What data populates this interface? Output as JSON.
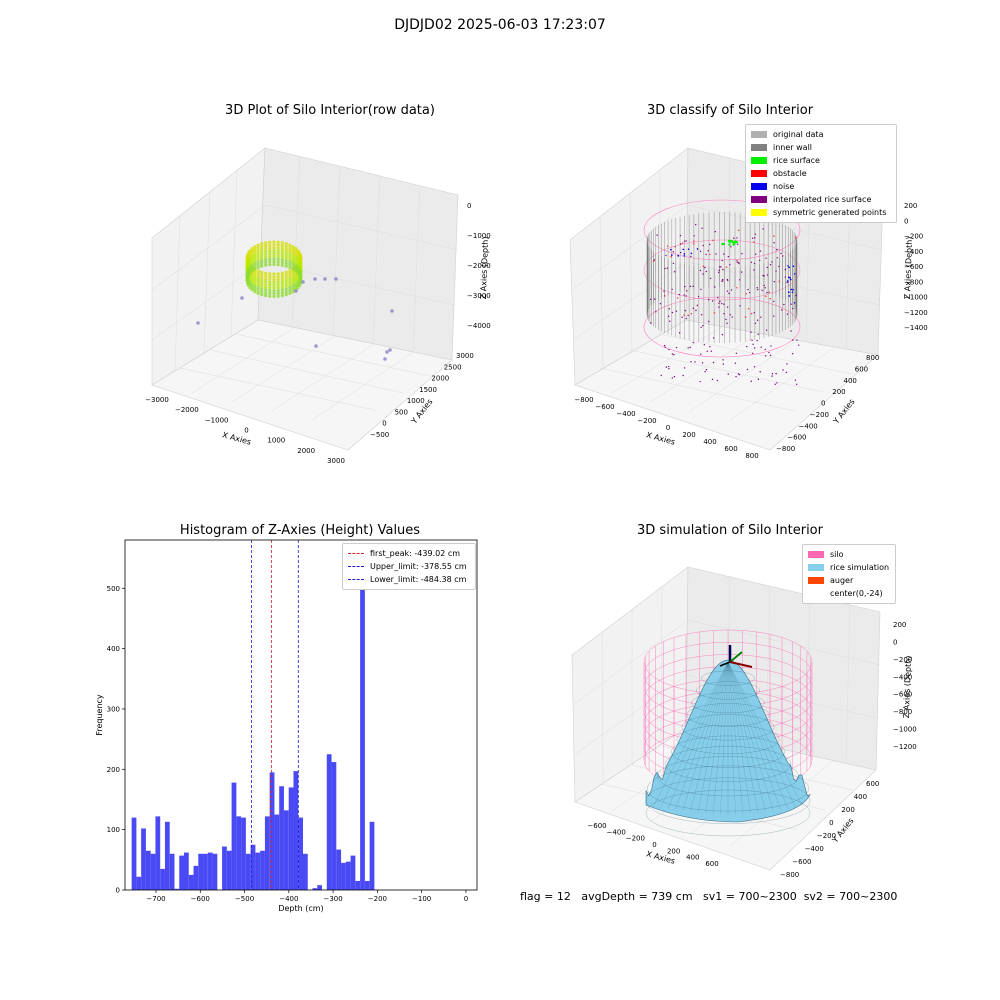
{
  "suptitle": "DJDJD02 2025-06-03 17:23:07",
  "footer": "flag = 12   avgDepth = 739 cm   sv1 = 700~2300  sv2 = 700~2300",
  "colors": {
    "hist": "#4a4af5",
    "peak": "#d62728",
    "limit": "#1f1fcf"
  },
  "chart_data": [
    {
      "type": "scatter",
      "title": "3D Plot of Silo Interior(row data)",
      "xlabel": "X Axies",
      "ylabel": "Y Axies",
      "zlabel": "Z Axies (Depth)",
      "xticks": [
        "−3000",
        "−2000",
        "−1000",
        "0",
        "1000",
        "2000",
        "3000"
      ],
      "yticks": [
        "−500",
        "0",
        "500",
        "1000",
        "1500",
        "2000",
        "2500",
        "3000"
      ],
      "zticks": [
        "0",
        "−1000",
        "−2000",
        "−3000",
        "−4000"
      ]
    },
    {
      "type": "scatter",
      "title": "3D classify of Silo Interior",
      "xlabel": "X Axies",
      "ylabel": "Y Axies",
      "zlabel": "Z Axies (Depth)",
      "xticks": [
        "−800",
        "−600",
        "−400",
        "−200",
        "0",
        "200",
        "400",
        "600",
        "800"
      ],
      "yticks": [
        "−800",
        "−600",
        "−400",
        "−200",
        "0",
        "200",
        "400",
        "600",
        "800"
      ],
      "zticks": [
        "200",
        "0",
        "−200",
        "−400",
        "−600",
        "−800",
        "−1000",
        "−1200",
        "−1400"
      ],
      "legend": [
        {
          "label": "original data",
          "color": "#b0b0b0"
        },
        {
          "label": "inner wall",
          "color": "#808080"
        },
        {
          "label": "rice surface",
          "color": "#00ee00"
        },
        {
          "label": "obstacle",
          "color": "#ff0000"
        },
        {
          "label": "noise",
          "color": "#0000ee"
        },
        {
          "label": "interpolated rice surface",
          "color": "#800080"
        },
        {
          "label": "symmetric generated points",
          "color": "#ffff00"
        }
      ]
    },
    {
      "type": "bar",
      "title": "Histogram of Z-Axies (Height) Values",
      "xlabel": "Depth (cm)",
      "ylabel": "Frequency",
      "xlim": [
        -770,
        25
      ],
      "ylim": [
        0,
        580
      ],
      "xticks": [
        -700,
        -600,
        -500,
        -400,
        -300,
        -200,
        -100,
        0
      ],
      "xtick_labels": [
        "−700",
        "−600",
        "−500",
        "−400",
        "−300",
        "−200",
        "−100",
        "0"
      ],
      "yticks": [
        0,
        100,
        200,
        300,
        400,
        500
      ],
      "bin_start": -755,
      "bin_width": 10.75,
      "values": [
        120,
        22,
        102,
        65,
        60,
        122,
        35,
        113,
        60,
        2,
        57,
        62,
        25,
        40,
        60,
        60,
        62,
        60,
        0,
        72,
        65,
        178,
        122,
        120,
        60,
        75,
        62,
        65,
        122,
        195,
        125,
        172,
        132,
        170,
        197,
        120,
        60,
        0,
        3,
        8,
        0,
        225,
        212,
        67,
        45,
        47,
        57,
        15,
        550,
        15,
        113
      ],
      "lines": [
        {
          "label": "first_peak: -439.02 cm",
          "x": -439.02,
          "color": "#d62728"
        },
        {
          "label": "Upper_limit: -378.55 cm",
          "x": -378.55,
          "color": "#1f1fcf"
        },
        {
          "label": "Lower_limit: -484.38 cm",
          "x": -484.38,
          "color": "#1f1fcf"
        }
      ]
    },
    {
      "type": "area",
      "title": "3D simulation of Silo Interior",
      "xlabel": "X Axies",
      "ylabel": "Y Axies",
      "zlabel": "Z Axies (Depth)",
      "xticks": [
        "−600",
        "−400",
        "−200",
        "0",
        "200",
        "400",
        "600"
      ],
      "yticks": [
        "−800",
        "−600",
        "−400",
        "−200",
        "0",
        "200",
        "400",
        "600"
      ],
      "zticks": [
        "200",
        "0",
        "−200",
        "−400",
        "−600",
        "−800",
        "−1000",
        "−1200"
      ],
      "legend": [
        {
          "label": "silo",
          "color": "#ff69b4"
        },
        {
          "label": "rice simulation",
          "color": "#87ceeb"
        },
        {
          "label": "auger",
          "color": "#ff4500"
        },
        {
          "label": "center(0,-24)",
          "color": ""
        }
      ]
    }
  ]
}
